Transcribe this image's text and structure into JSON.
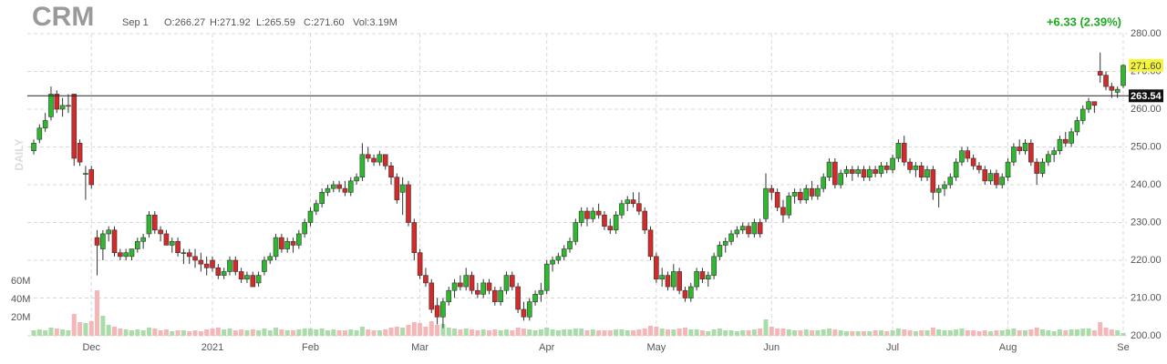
{
  "header": {
    "symbol": "CRM",
    "date": "Sep 1",
    "open": "O:266.27",
    "high": "H:271.92",
    "low": "L:265.59",
    "close": "C:271.60",
    "volume": "Vol:3.19M",
    "change": "+6.33 (2.39%)",
    "period": "DAILY"
  },
  "chart_data": {
    "type": "candlestick",
    "up_color": "#2db82d",
    "down_color": "#d42a2a",
    "up_volume_color": "#a9dca9",
    "down_volume_color": "#f4b6b6",
    "grid": true,
    "ylim": [
      200,
      280
    ],
    "yticks": [
      {
        "value": 200,
        "label": "200.00"
      },
      {
        "value": 210,
        "label": "210.00"
      },
      {
        "value": 220,
        "label": "220.00"
      },
      {
        "value": 230,
        "label": "230.00"
      },
      {
        "value": 240,
        "label": "240.00"
      },
      {
        "value": 250,
        "label": "250.00"
      },
      {
        "value": 260,
        "label": "260.00"
      },
      {
        "value": 270,
        "label": "270.00"
      },
      {
        "value": 280,
        "label": "280.00"
      }
    ],
    "volume_ylim": [
      0,
      80
    ],
    "volume_ticks": [
      {
        "value": 20,
        "label": "20M"
      },
      {
        "value": 40,
        "label": "40M"
      },
      {
        "value": 60,
        "label": "60M"
      }
    ],
    "xticks": [
      {
        "value": 10,
        "label": "Dec"
      },
      {
        "value": 31,
        "label": "2021"
      },
      {
        "value": 48,
        "label": "Feb"
      },
      {
        "value": 67,
        "label": "Mar"
      },
      {
        "value": 89,
        "label": "Apr"
      },
      {
        "value": 108,
        "label": "May"
      },
      {
        "value": 128,
        "label": "Jun"
      },
      {
        "value": 149,
        "label": "Jul"
      },
      {
        "value": 169,
        "label": "Aug"
      },
      {
        "value": 189,
        "label": "Se"
      }
    ],
    "price_lines": [
      {
        "value": 263.54,
        "label": "263.54"
      }
    ],
    "last_price": {
      "value": 271.6,
      "label": "271.60"
    },
    "candles": [
      [
        249,
        252,
        248,
        251,
        6
      ],
      [
        252,
        256,
        251,
        255,
        7
      ],
      [
        255,
        259,
        254,
        257,
        6
      ],
      [
        258,
        266,
        257,
        264,
        9
      ],
      [
        264,
        265,
        259,
        260,
        8
      ],
      [
        260,
        263,
        258,
        261,
        7
      ],
      [
        261,
        264,
        259,
        261,
        6
      ],
      [
        264,
        264,
        245,
        247,
        24
      ],
      [
        251,
        252,
        245,
        246,
        15
      ],
      [
        243,
        245,
        236,
        243,
        14
      ],
      [
        244,
        245,
        239,
        240,
        16
      ],
      [
        226,
        228,
        216,
        224,
        50
      ],
      [
        223,
        228,
        220,
        227,
        22
      ],
      [
        227,
        229,
        225,
        228,
        12
      ],
      [
        228,
        229,
        221,
        222,
        10
      ],
      [
        222,
        223,
        220,
        221,
        8
      ],
      [
        221,
        223,
        220,
        222,
        7
      ],
      [
        221,
        223,
        220,
        223,
        6
      ],
      [
        223,
        226,
        222,
        225,
        7
      ],
      [
        225,
        227,
        223,
        226,
        6
      ],
      [
        227,
        233,
        226,
        232,
        9
      ],
      [
        232,
        233,
        227,
        228,
        8
      ],
      [
        228,
        229,
        225,
        227,
        6
      ],
      [
        227,
        228,
        224,
        224,
        7
      ],
      [
        224,
        226,
        222,
        225,
        5
      ],
      [
        225,
        226,
        221,
        222,
        6
      ],
      [
        222,
        223,
        219,
        222,
        6
      ],
      [
        222,
        223,
        219,
        221,
        5
      ],
      [
        221,
        223,
        218,
        220,
        6
      ],
      [
        220,
        222,
        217,
        219,
        5
      ],
      [
        219,
        221,
        216,
        218,
        7
      ],
      [
        220,
        221,
        217,
        218,
        8
      ],
      [
        218,
        219,
        215,
        216,
        9
      ],
      [
        216,
        218,
        215,
        217,
        7
      ],
      [
        217,
        221,
        216,
        220,
        8
      ],
      [
        220,
        221,
        216,
        217,
        6
      ],
      [
        217,
        218,
        214,
        215,
        7
      ],
      [
        215,
        217,
        214,
        216,
        6
      ],
      [
        216,
        217,
        213,
        213,
        7
      ],
      [
        214,
        217,
        213,
        216,
        6
      ],
      [
        217,
        221,
        216,
        220,
        8
      ],
      [
        220,
        222,
        219,
        221,
        6
      ],
      [
        221,
        227,
        220,
        226,
        9
      ],
      [
        226,
        227,
        222,
        223,
        7
      ],
      [
        223,
        226,
        222,
        225,
        6
      ],
      [
        225,
        226,
        222,
        224,
        6
      ],
      [
        224,
        228,
        223,
        227,
        7
      ],
      [
        227,
        231,
        226,
        230,
        8
      ],
      [
        230,
        234,
        229,
        233,
        8
      ],
      [
        233,
        236,
        232,
        235,
        7
      ],
      [
        235,
        239,
        234,
        238,
        8
      ],
      [
        238,
        240,
        237,
        239,
        6
      ],
      [
        239,
        241,
        238,
        240,
        7
      ],
      [
        240,
        241,
        238,
        239,
        6
      ],
      [
        239,
        241,
        237,
        238,
        6
      ],
      [
        238,
        242,
        237,
        241,
        7
      ],
      [
        241,
        243,
        240,
        242,
        6
      ],
      [
        242,
        251,
        241,
        248,
        10
      ],
      [
        248,
        250,
        246,
        247,
        7
      ],
      [
        247,
        248,
        245,
        246,
        6
      ],
      [
        246,
        249,
        245,
        248,
        6
      ],
      [
        248,
        248,
        244,
        245,
        7
      ],
      [
        245,
        246,
        240,
        242,
        9
      ],
      [
        242,
        243,
        235,
        236,
        10
      ],
      [
        238,
        242,
        232,
        240,
        9
      ],
      [
        240,
        241,
        229,
        230,
        12
      ],
      [
        230,
        231,
        220,
        222,
        15
      ],
      [
        222,
        223,
        215,
        216,
        14
      ],
      [
        216,
        218,
        213,
        214,
        10
      ],
      [
        214,
        215,
        206,
        207,
        16
      ],
      [
        208,
        210,
        203,
        205,
        12
      ],
      [
        205,
        210,
        202,
        209,
        13
      ],
      [
        209,
        213,
        208,
        212,
        9
      ],
      [
        212,
        215,
        210,
        214,
        8
      ],
      [
        214,
        216,
        212,
        213,
        7
      ],
      [
        213,
        218,
        212,
        216,
        8
      ],
      [
        216,
        217,
        211,
        212,
        7
      ],
      [
        212,
        214,
        210,
        211,
        6
      ],
      [
        211,
        215,
        210,
        214,
        7
      ],
      [
        214,
        215,
        211,
        212,
        6
      ],
      [
        212,
        213,
        208,
        209,
        7
      ],
      [
        209,
        213,
        208,
        212,
        6
      ],
      [
        212,
        217,
        211,
        216,
        7
      ],
      [
        216,
        217,
        212,
        213,
        6
      ],
      [
        213,
        214,
        206,
        207,
        9
      ],
      [
        207,
        209,
        204,
        205,
        8
      ],
      [
        205,
        210,
        204,
        209,
        7
      ],
      [
        209,
        212,
        208,
        211,
        6
      ],
      [
        211,
        214,
        209,
        212,
        7
      ],
      [
        212,
        220,
        211,
        219,
        9
      ],
      [
        219,
        221,
        217,
        220,
        7
      ],
      [
        220,
        222,
        219,
        221,
        6
      ],
      [
        221,
        224,
        220,
        223,
        7
      ],
      [
        223,
        226,
        222,
        225,
        7
      ],
      [
        225,
        231,
        224,
        230,
        8
      ],
      [
        230,
        234,
        229,
        233,
        8
      ],
      [
        233,
        234,
        229,
        231,
        6
      ],
      [
        231,
        234,
        230,
        233,
        7
      ],
      [
        233,
        235,
        231,
        232,
        6
      ],
      [
        232,
        233,
        228,
        229,
        6
      ],
      [
        229,
        231,
        227,
        228,
        6
      ],
      [
        228,
        233,
        227,
        232,
        7
      ],
      [
        232,
        236,
        231,
        235,
        7
      ],
      [
        235,
        237,
        233,
        236,
        6
      ],
      [
        236,
        238,
        234,
        235,
        6
      ],
      [
        235,
        238,
        232,
        233,
        7
      ],
      [
        233,
        234,
        227,
        228,
        8
      ],
      [
        228,
        229,
        220,
        221,
        11
      ],
      [
        221,
        222,
        214,
        215,
        10
      ],
      [
        215,
        218,
        213,
        216,
        8
      ],
      [
        216,
        217,
        212,
        213,
        7
      ],
      [
        213,
        219,
        212,
        217,
        7
      ],
      [
        217,
        218,
        211,
        212,
        8
      ],
      [
        212,
        213,
        209,
        210,
        9
      ],
      [
        210,
        214,
        209,
        213,
        7
      ],
      [
        213,
        218,
        212,
        217,
        7
      ],
      [
        217,
        218,
        214,
        215,
        6
      ],
      [
        215,
        217,
        213,
        216,
        5
      ],
      [
        216,
        222,
        215,
        221,
        7
      ],
      [
        221,
        225,
        220,
        224,
        8
      ],
      [
        224,
        226,
        222,
        225,
        6
      ],
      [
        225,
        228,
        224,
        227,
        6
      ],
      [
        227,
        229,
        226,
        228,
        5
      ],
      [
        228,
        230,
        227,
        229,
        6
      ],
      [
        229,
        230,
        226,
        227,
        6
      ],
      [
        227,
        231,
        226,
        230,
        7
      ],
      [
        230,
        231,
        226,
        227,
        8
      ],
      [
        231,
        243,
        230,
        239,
        18
      ],
      [
        239,
        240,
        236,
        238,
        10
      ],
      [
        238,
        239,
        233,
        234,
        8
      ],
      [
        234,
        236,
        230,
        232,
        8
      ],
      [
        232,
        238,
        231,
        237,
        7
      ],
      [
        237,
        239,
        235,
        238,
        6
      ],
      [
        238,
        239,
        235,
        236,
        6
      ],
      [
        236,
        240,
        235,
        239,
        7
      ],
      [
        239,
        241,
        236,
        237,
        6
      ],
      [
        237,
        240,
        236,
        239,
        6
      ],
      [
        239,
        243,
        238,
        242,
        7
      ],
      [
        242,
        247,
        241,
        246,
        8
      ],
      [
        246,
        247,
        239,
        240,
        7
      ],
      [
        240,
        244,
        239,
        243,
        6
      ],
      [
        243,
        245,
        242,
        244,
        5
      ],
      [
        244,
        245,
        241,
        243,
        5
      ],
      [
        243,
        245,
        242,
        244,
        5
      ],
      [
        244,
        245,
        241,
        242,
        5
      ],
      [
        242,
        245,
        241,
        244,
        5
      ],
      [
        244,
        245,
        242,
        243,
        6
      ],
      [
        243,
        246,
        242,
        245,
        6
      ],
      [
        245,
        246,
        243,
        244,
        5
      ],
      [
        244,
        248,
        243,
        247,
        6
      ],
      [
        247,
        252,
        246,
        251,
        8
      ],
      [
        251,
        253,
        245,
        246,
        7
      ],
      [
        246,
        247,
        243,
        244,
        6
      ],
      [
        244,
        246,
        242,
        245,
        5
      ],
      [
        245,
        246,
        241,
        242,
        6
      ],
      [
        242,
        245,
        241,
        244,
        6
      ],
      [
        244,
        245,
        236,
        238,
        9
      ],
      [
        238,
        240,
        234,
        239,
        7
      ],
      [
        239,
        241,
        237,
        240,
        6
      ],
      [
        240,
        243,
        239,
        242,
        6
      ],
      [
        242,
        247,
        241,
        246,
        7
      ],
      [
        246,
        250,
        245,
        249,
        8
      ],
      [
        249,
        250,
        246,
        247,
        6
      ],
      [
        247,
        248,
        244,
        245,
        6
      ],
      [
        245,
        246,
        243,
        244,
        5
      ],
      [
        244,
        245,
        240,
        241,
        6
      ],
      [
        241,
        244,
        240,
        243,
        5
      ],
      [
        243,
        244,
        239,
        240,
        6
      ],
      [
        240,
        243,
        239,
        242,
        6
      ],
      [
        242,
        247,
        241,
        246,
        7
      ],
      [
        246,
        251,
        245,
        250,
        8
      ],
      [
        250,
        252,
        248,
        249,
        6
      ],
      [
        249,
        252,
        248,
        251,
        6
      ],
      [
        251,
        252,
        245,
        246,
        7
      ],
      [
        246,
        247,
        240,
        243,
        9
      ],
      [
        243,
        247,
        242,
        246,
        7
      ],
      [
        246,
        249,
        245,
        248,
        6
      ],
      [
        248,
        250,
        246,
        249,
        5
      ],
      [
        249,
        253,
        248,
        252,
        7
      ],
      [
        252,
        254,
        250,
        251,
        6
      ],
      [
        251,
        255,
        250,
        254,
        7
      ],
      [
        254,
        258,
        253,
        257,
        7
      ],
      [
        257,
        261,
        256,
        260,
        8
      ],
      [
        260,
        263,
        259,
        262,
        8
      ],
      [
        262,
        262,
        259,
        261,
        6
      ],
      [
        270,
        275,
        267,
        269,
        15
      ],
      [
        269,
        270,
        265,
        266,
        9
      ],
      [
        266,
        267,
        263,
        265,
        7
      ],
      [
        264.5,
        266,
        263,
        265.27,
        6
      ],
      [
        266.27,
        271.92,
        265.59,
        271.6,
        3.19
      ]
    ]
  }
}
